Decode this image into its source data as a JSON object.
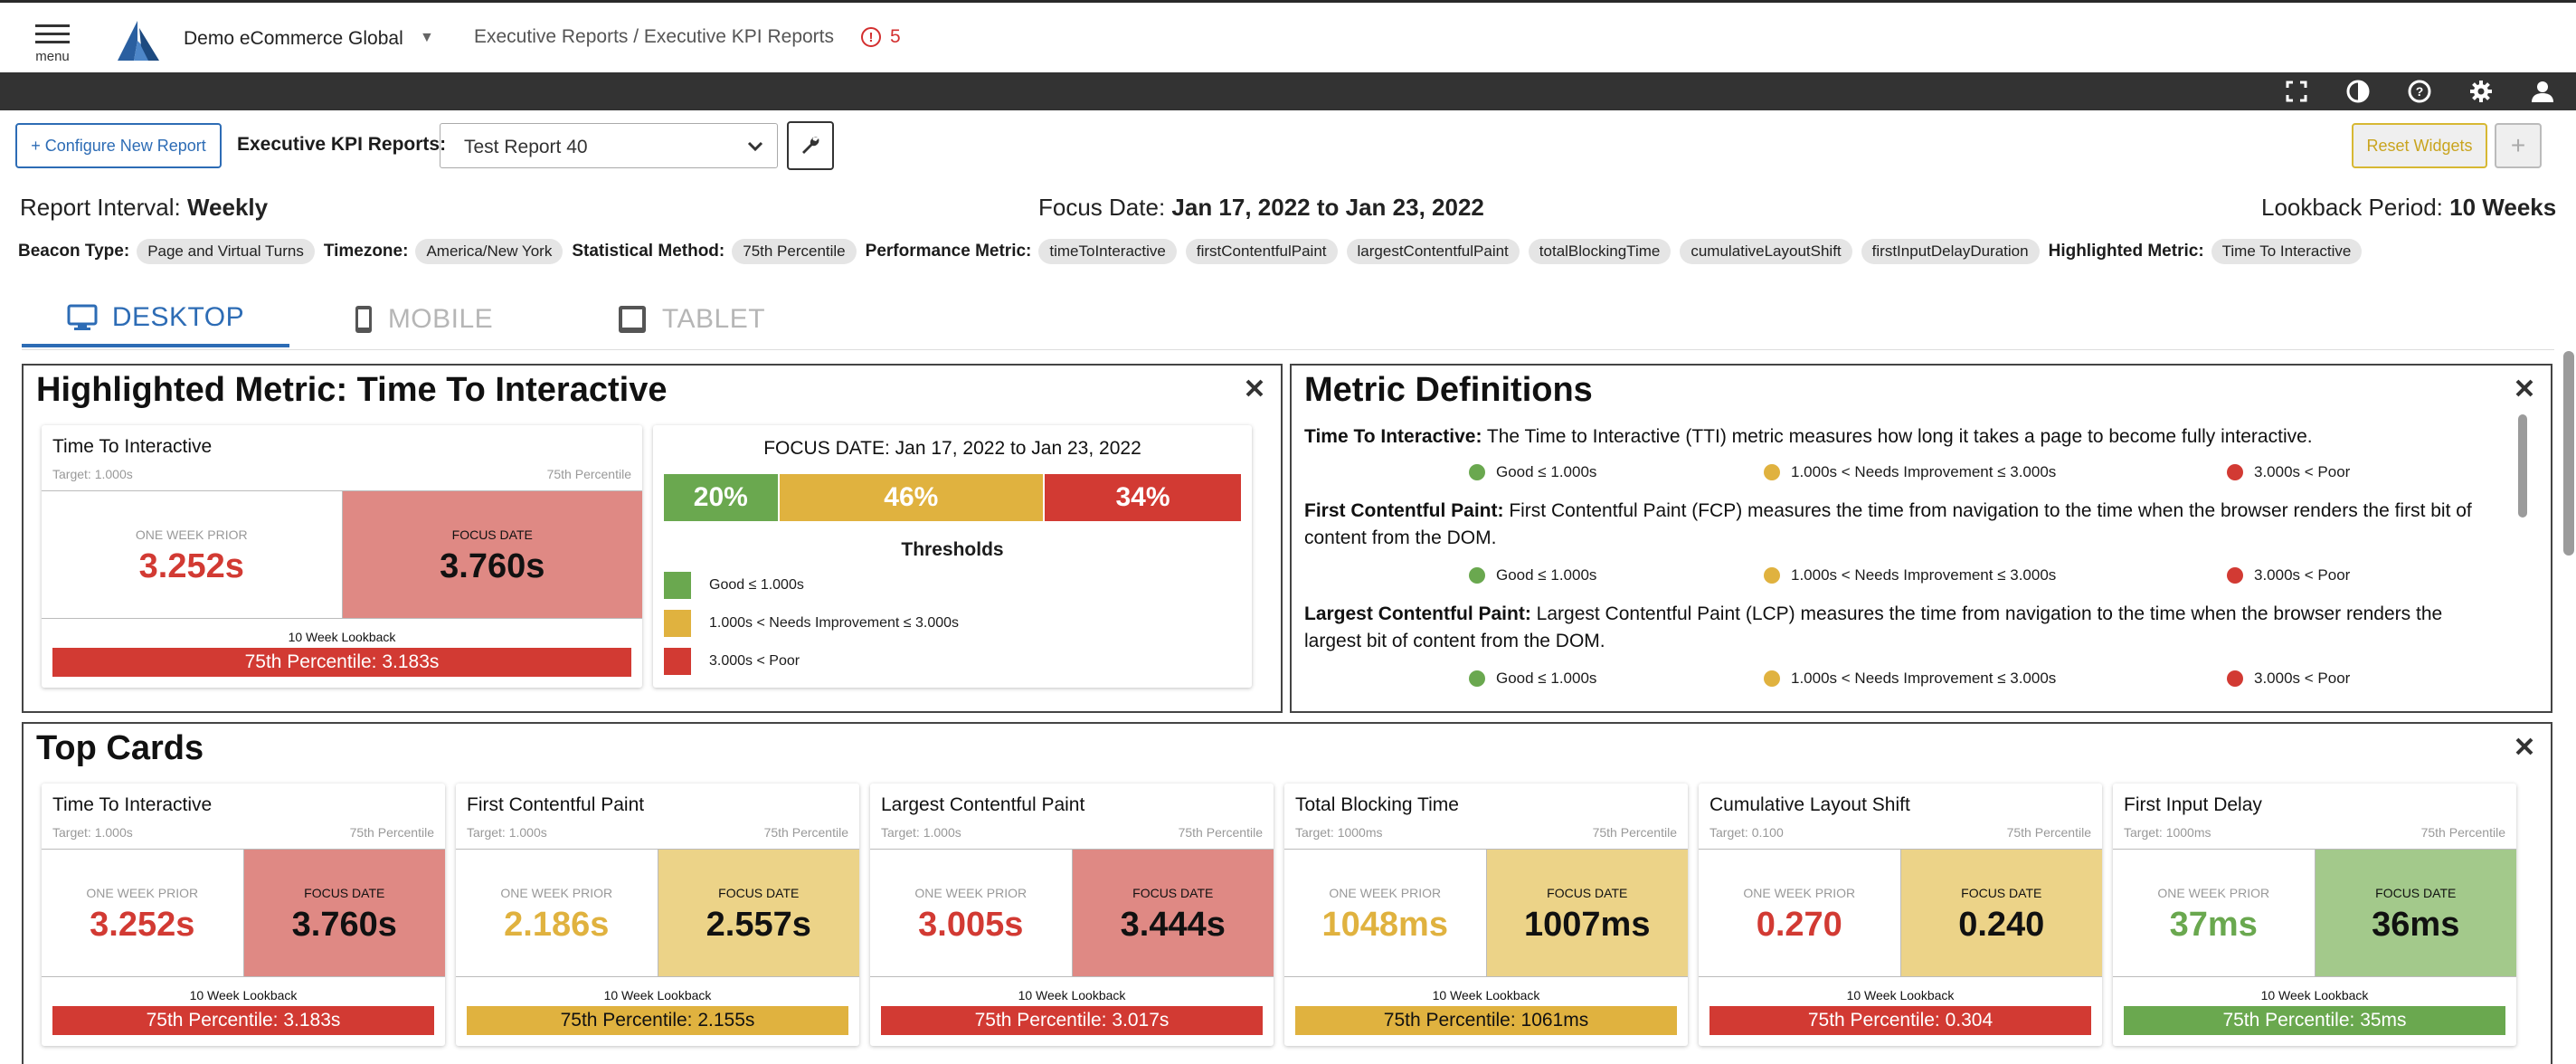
{
  "header": {
    "menu_label": "menu",
    "org_name": "Demo eCommerce Global",
    "breadcrumb": "Executive Reports / Executive KPI Reports",
    "alert_count": "5"
  },
  "toolbar": {
    "configure_label": "+ Configure New Report",
    "kpi_label": "Executive KPI Reports:",
    "selected_report": "Test Report 40",
    "reset_label": "Reset Widgets",
    "add_label": "+"
  },
  "summary": {
    "interval_label": "Report Interval:",
    "interval_value": "Weekly",
    "focus_label": "Focus Date:",
    "focus_value": "Jan 17, 2022 to Jan 23, 2022",
    "lookback_label": "Lookback Period:",
    "lookback_value": "10 Weeks"
  },
  "meta": {
    "beacon_label": "Beacon Type:",
    "beacon_value": "Page and Virtual Turns",
    "timezone_label": "Timezone:",
    "timezone_value": "America/New York",
    "method_label": "Statistical Method:",
    "method_value": "75th Percentile",
    "perf_label": "Performance Metric:",
    "perf_metrics": [
      "timeToInteractive",
      "firstContentfulPaint",
      "largestContentfulPaint",
      "totalBlockingTime",
      "cumulativeLayoutShift",
      "firstInputDelayDuration"
    ],
    "highlight_label": "Highlighted Metric:",
    "highlight_value": "Time To Interactive"
  },
  "tabs": [
    "DESKTOP",
    "MOBILE",
    "TABLET"
  ],
  "colors": {
    "good": "#6aa84f",
    "warn": "#e0b23f",
    "poor": "#d23a33",
    "good_bg": "#a3c98b",
    "warn_bg": "#ecd388",
    "poor_bg": "#df8984",
    "accent": "#2d6cb5"
  },
  "highlighted": {
    "title": "Highlighted Metric: Time To Interactive",
    "card": {
      "title": "Time To Interactive",
      "target": "Target: 1.000s",
      "percentile": "75th Percentile",
      "prior_label": "ONE WEEK PRIOR",
      "prior_value": "3.252s",
      "focus_label": "FOCUS DATE",
      "focus_value": "3.760s",
      "lookback_label": "10 Week Lookback",
      "lookback_value": "75th Percentile: 3.183s"
    },
    "distribution": {
      "title": "FOCUS DATE: Jan 17, 2022 to Jan 23, 2022",
      "segments": [
        {
          "label": "20%",
          "pct": 20,
          "status": "good"
        },
        {
          "label": "46%",
          "pct": 46,
          "status": "warn"
        },
        {
          "label": "34%",
          "pct": 34,
          "status": "poor"
        }
      ],
      "thresholds_title": "Thresholds",
      "thresholds": [
        "Good ≤ 1.000s",
        "1.000s < Needs Improvement ≤ 3.000s",
        "3.000s < Poor"
      ]
    }
  },
  "definitions": {
    "title": "Metric Definitions",
    "items": [
      {
        "name": "Time To Interactive:",
        "text": " The Time to Interactive (TTI) metric measures how long it takes a page to become fully interactive.",
        "good": "Good ≤ 1.000s",
        "warn": "1.000s < Needs Improvement ≤ 3.000s",
        "poor": "3.000s < Poor"
      },
      {
        "name": "First Contentful Paint:",
        "text": " First Contentful Paint (FCP) measures the time from navigation to the time when the browser renders the first bit of content from the DOM.",
        "good": "Good ≤ 1.000s",
        "warn": "1.000s < Needs Improvement ≤ 3.000s",
        "poor": "3.000s < Poor"
      },
      {
        "name": "Largest Contentful Paint:",
        "text": " Largest Contentful Paint (LCP) measures the time from navigation to the time when the browser renders the largest bit of content from the DOM.",
        "good": "Good ≤ 1.000s",
        "warn": "1.000s < Needs Improvement ≤ 3.000s",
        "poor": "3.000s < Poor"
      }
    ]
  },
  "top_cards": {
    "title": "Top Cards",
    "cards": [
      {
        "title": "Time To Interactive",
        "target": "Target: 1.000s",
        "percentile": "75th Percentile",
        "prior_label": "ONE WEEK PRIOR",
        "prior_value": "3.252s",
        "prior_status": "poor",
        "focus_label": "FOCUS DATE",
        "focus_value": "3.760s",
        "focus_status": "poor",
        "lookback_label": "10 Week Lookback",
        "lookback_value": "75th Percentile: 3.183s",
        "lookback_status": "poor"
      },
      {
        "title": "First Contentful Paint",
        "target": "Target: 1.000s",
        "percentile": "75th Percentile",
        "prior_label": "ONE WEEK PRIOR",
        "prior_value": "2.186s",
        "prior_status": "warn",
        "focus_label": "FOCUS DATE",
        "focus_value": "2.557s",
        "focus_status": "warn",
        "lookback_label": "10 Week Lookback",
        "lookback_value": "75th Percentile: 2.155s",
        "lookback_status": "warn"
      },
      {
        "title": "Largest Contentful Paint",
        "target": "Target: 1.000s",
        "percentile": "75th Percentile",
        "prior_label": "ONE WEEK PRIOR",
        "prior_value": "3.005s",
        "prior_status": "poor",
        "focus_label": "FOCUS DATE",
        "focus_value": "3.444s",
        "focus_status": "poor",
        "lookback_label": "10 Week Lookback",
        "lookback_value": "75th Percentile: 3.017s",
        "lookback_status": "poor"
      },
      {
        "title": "Total Blocking Time",
        "target": "Target: 1000ms",
        "percentile": "75th Percentile",
        "prior_label": "ONE WEEK PRIOR",
        "prior_value": "1048ms",
        "prior_status": "warn",
        "focus_label": "FOCUS DATE",
        "focus_value": "1007ms",
        "focus_status": "warn",
        "lookback_label": "10 Week Lookback",
        "lookback_value": "75th Percentile: 1061ms",
        "lookback_status": "warn"
      },
      {
        "title": "Cumulative Layout Shift",
        "target": "Target: 0.100",
        "percentile": "75th Percentile",
        "prior_label": "ONE WEEK PRIOR",
        "prior_value": "0.270",
        "prior_status": "poor",
        "focus_label": "FOCUS DATE",
        "focus_value": "0.240",
        "focus_status": "warn",
        "lookback_label": "10 Week Lookback",
        "lookback_value": "75th Percentile: 0.304",
        "lookback_status": "poor"
      },
      {
        "title": "First Input Delay",
        "target": "Target: 1000ms",
        "percentile": "75th Percentile",
        "prior_label": "ONE WEEK PRIOR",
        "prior_value": "37ms",
        "prior_status": "good",
        "focus_label": "FOCUS DATE",
        "focus_value": "36ms",
        "focus_status": "good",
        "lookback_label": "10 Week Lookback",
        "lookback_value": "75th Percentile: 35ms",
        "lookback_status": "good"
      }
    ]
  }
}
